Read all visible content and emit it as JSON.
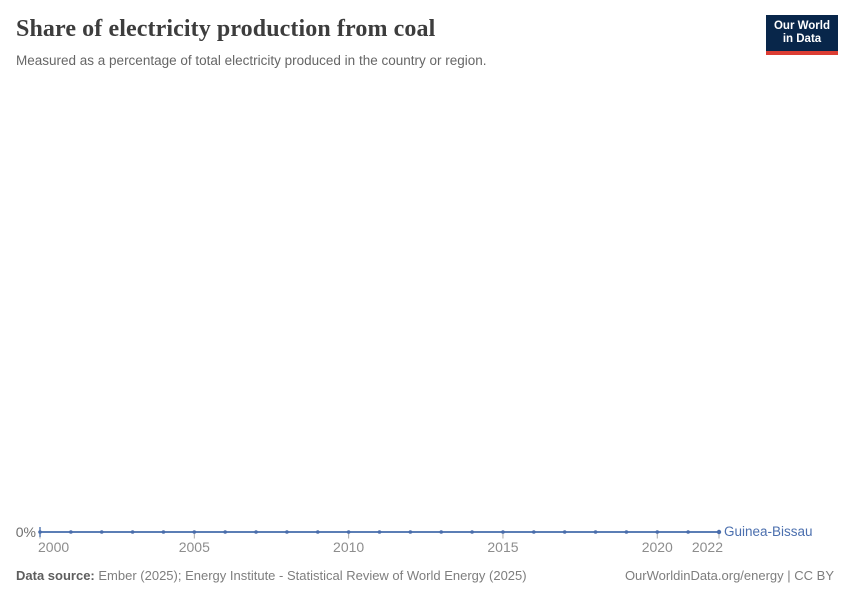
{
  "header": {
    "title": "Share of electricity production from coal",
    "subtitle": "Measured as a percentage of total electricity produced in the country or region."
  },
  "logo": {
    "line1": "Our World",
    "line2": "in Data"
  },
  "chart": {
    "entity": "Guinea-Bissau",
    "y_zero_label": "0%"
  },
  "chart_data": {
    "type": "line",
    "title": "Share of electricity production from coal",
    "subtitle": "Measured as a percentage of total electricity produced in the country or region.",
    "unit": "%",
    "x": [
      2000,
      2001,
      2002,
      2003,
      2004,
      2005,
      2006,
      2007,
      2008,
      2009,
      2010,
      2011,
      2012,
      2013,
      2014,
      2015,
      2016,
      2017,
      2018,
      2019,
      2020,
      2021,
      2022
    ],
    "series": [
      {
        "name": "Guinea-Bissau",
        "values": [
          0,
          0,
          0,
          0,
          0,
          0,
          0,
          0,
          0,
          0,
          0,
          0,
          0,
          0,
          0,
          0,
          0,
          0,
          0,
          0,
          0,
          0,
          0
        ]
      }
    ],
    "x_ticks": [
      2000,
      2005,
      2010,
      2015,
      2020,
      2022
    ],
    "y_tick_labels": [
      "0%"
    ],
    "grid": false,
    "legend": "entity-label-at-line-end",
    "markers": true
  },
  "footer": {
    "source_label": "Data source:",
    "source_text": "Ember (2025); Energy Institute - Statistical Review of World Energy (2025)",
    "right_text": "OurWorldinData.org/energy | CC BY"
  },
  "colors": {
    "line": "#5b7eb5",
    "marker": "#4a6dab",
    "entity_label": "#4b6fae",
    "axis_tick": "#a8a8a8",
    "title_text": "#3d3d3d",
    "logo_bg": "#08264a",
    "logo_accent": "#dc3d33"
  }
}
